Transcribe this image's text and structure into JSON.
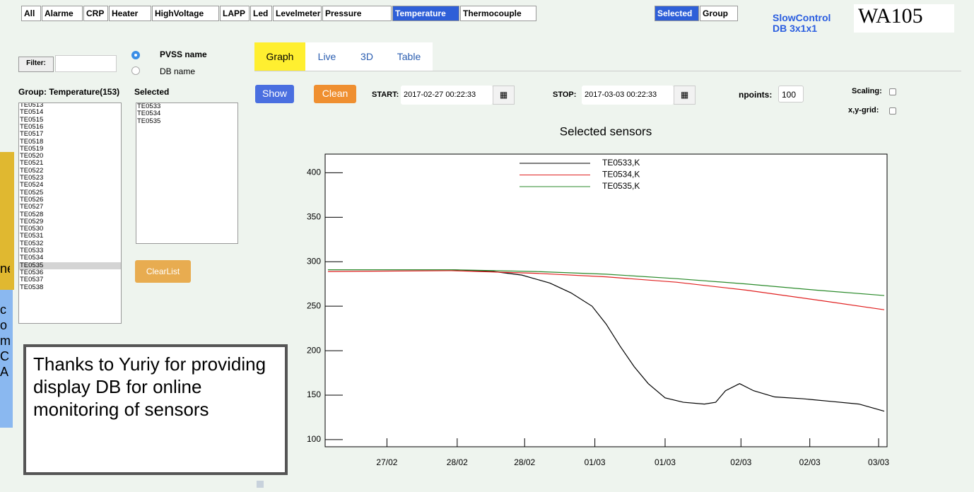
{
  "toolbar": {
    "buttons": [
      "All",
      "Alarme",
      "CRP",
      "Heater",
      "HighVoltage",
      "LAPP",
      "Led",
      "Levelmeter",
      "Pressure",
      "Temperature",
      "Thermocouple"
    ],
    "active": "Temperature",
    "mode_buttons": [
      "Selected",
      "Group"
    ],
    "active_mode": "Selected"
  },
  "brand": {
    "line1": "SlowControl",
    "line2": "DB 3x1x1",
    "logo": "WA105"
  },
  "filter": {
    "label": "Filter:",
    "radio": [
      "PVSS name",
      "DB name"
    ]
  },
  "tabs": [
    "Graph",
    "Live",
    "3D",
    "Table"
  ],
  "group": {
    "label": "Group: Temperature(153)",
    "items": [
      "TE0513",
      "TE0514",
      "TE0515",
      "TE0516",
      "TE0517",
      "TE0518",
      "TE0519",
      "TE0520",
      "TE0521",
      "TE0522",
      "TE0523",
      "TE0524",
      "TE0525",
      "TE0526",
      "TE0527",
      "TE0528",
      "TE0529",
      "TE0530",
      "TE0531",
      "TE0532",
      "TE0533",
      "TE0534",
      "TE0535",
      "TE0536",
      "TE0537",
      "TE0538"
    ],
    "highlighted": "TE0535"
  },
  "selected": {
    "label": "Selected",
    "items": [
      "TE0533",
      "TE0534",
      "TE0535"
    ],
    "clear": "ClearList"
  },
  "controls": {
    "show": "Show",
    "clean": "Clean",
    "start_label": "START:",
    "start": "2017-02-27 00:22:33",
    "stop_label": "STOP:",
    "stop": "2017-03-03 00:22:33",
    "npoints_label": "npoints:",
    "npoints": "100",
    "scaling": "Scaling:",
    "grid": "x,y-grid:"
  },
  "note": "Thanks to Yuriy for providing display DB for online monitoring of sensors",
  "side_fragments": [
    "ne",
    "c",
    "o",
    "m",
    "C",
    "A"
  ],
  "chart_data": {
    "type": "line",
    "title": "Selected sensors",
    "xlim": [
      0,
      4
    ],
    "ylim": [
      92,
      421
    ],
    "xticks": [
      {
        "value": 0.44,
        "label": "27/02"
      },
      {
        "value": 0.94,
        "label": "28/02"
      },
      {
        "value": 1.42,
        "label": "28/02"
      },
      {
        "value": 1.92,
        "label": "01/03"
      },
      {
        "value": 2.42,
        "label": "01/03"
      },
      {
        "value": 2.96,
        "label": "02/03"
      },
      {
        "value": 3.45,
        "label": "02/03"
      },
      {
        "value": 3.94,
        "label": "03/03"
      }
    ],
    "yticks": [
      100,
      150,
      200,
      250,
      300,
      350,
      400
    ],
    "series": [
      {
        "name": "TE0533,K",
        "color": "#000000",
        "x": [
          0.02,
          0.5,
          0.9,
          1.2,
          1.4,
          1.6,
          1.75,
          1.9,
          2.0,
          2.1,
          2.2,
          2.3,
          2.42,
          2.55,
          2.7,
          2.78,
          2.85,
          2.95,
          3.05,
          3.2,
          3.4,
          3.6,
          3.8,
          3.98
        ],
        "values": [
          291,
          291,
          291,
          289,
          285,
          276,
          265,
          250,
          230,
          205,
          182,
          163,
          147,
          142,
          140,
          142,
          155,
          163,
          155,
          148,
          146,
          143,
          140,
          132
        ]
      },
      {
        "name": "TE0534,K",
        "color": "#e02020",
        "x": [
          0.02,
          0.9,
          1.5,
          2.0,
          2.5,
          3.0,
          3.5,
          3.98
        ],
        "values": [
          289,
          290,
          287,
          283,
          277,
          268,
          257,
          246
        ]
      },
      {
        "name": "TE0535,K",
        "color": "#2a8a2a",
        "x": [
          0.02,
          0.9,
          1.5,
          2.0,
          2.5,
          3.0,
          3.5,
          3.98
        ],
        "values": [
          291,
          291,
          289,
          286,
          281,
          275,
          268,
          262
        ]
      }
    ]
  }
}
